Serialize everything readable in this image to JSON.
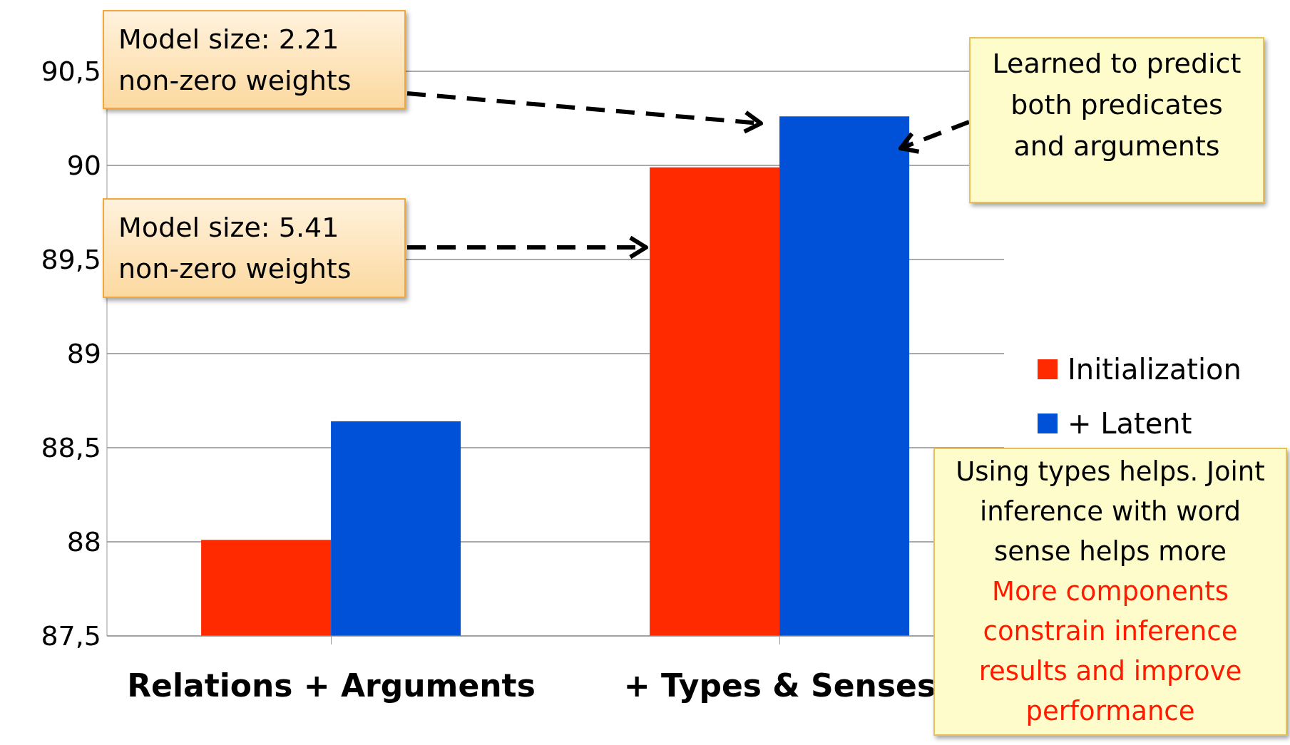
{
  "chart_data": {
    "type": "bar",
    "categories": [
      "Relations + Arguments",
      "+ Types & Senses"
    ],
    "series": [
      {
        "name": "Initialization",
        "color": "#ff2a00",
        "values": [
          88.01,
          89.99
        ]
      },
      {
        "name": "+ Latent",
        "color": "#0050d8",
        "values": [
          88.64,
          90.26
        ]
      }
    ],
    "ylim": [
      87.5,
      90.5
    ],
    "yticks": [
      {
        "value": 87.5,
        "label": "87,5"
      },
      88,
      {
        "value": 88.5,
        "label": "88,5"
      },
      89,
      {
        "value": 89.5,
        "label": "89,5"
      },
      90,
      {
        "value": 90.5,
        "label": "90,5"
      }
    ],
    "grid": "y",
    "legend": "right",
    "annotations": [
      "Model size: 2.21\nnon-zero weights",
      "Model size: 5.41\nnon-zero weights",
      "Learned to predict\nboth predicates\nand arguments",
      "Using types helps. Joint\ninference with word\nsense helps more",
      "More components\nconstrain inference\nresults and improve\nperformance"
    ]
  }
}
